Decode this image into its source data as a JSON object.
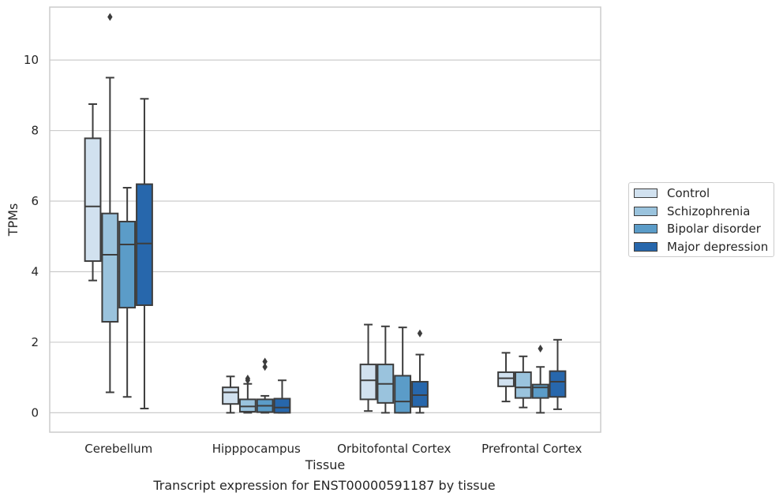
{
  "chart_data": {
    "type": "box",
    "xlabel": "Tissue",
    "ylabel": "TPMs",
    "caption": "Transcript expression for ENST00000591187 by tissue",
    "ylim": [
      -0.55,
      11.5
    ],
    "yticks": [
      0,
      2,
      4,
      6,
      8,
      10
    ],
    "grid": "horizontal",
    "legend_position": "right",
    "categories": [
      "Cerebellum",
      "Hipppocampus",
      "Orbitofontal Cortex",
      "Prefrontal Cortex"
    ],
    "series": [
      {
        "name": "Control",
        "color": "#d1e1ef",
        "boxes": [
          {
            "whislo": 3.75,
            "q1": 4.3,
            "med": 5.85,
            "q3": 7.78,
            "whishi": 8.75,
            "fliers": []
          },
          {
            "whislo": 0.0,
            "q1": 0.25,
            "med": 0.58,
            "q3": 0.72,
            "whishi": 1.03,
            "fliers": []
          },
          {
            "whislo": 0.05,
            "q1": 0.38,
            "med": 0.92,
            "q3": 1.37,
            "whishi": 2.5,
            "fliers": []
          },
          {
            "whislo": 0.32,
            "q1": 0.75,
            "med": 0.98,
            "q3": 1.15,
            "whishi": 1.7,
            "fliers": []
          }
        ]
      },
      {
        "name": "Schizophrenia",
        "color": "#9ac3dd",
        "boxes": [
          {
            "whislo": 0.58,
            "q1": 2.58,
            "med": 4.48,
            "q3": 5.65,
            "whishi": 9.5,
            "fliers": [
              11.22
            ]
          },
          {
            "whislo": 0.0,
            "q1": 0.03,
            "med": 0.18,
            "q3": 0.38,
            "whishi": 0.82,
            "fliers": [
              0.97,
              0.92
            ]
          },
          {
            "whislo": 0.0,
            "q1": 0.28,
            "med": 0.82,
            "q3": 1.37,
            "whishi": 2.45,
            "fliers": []
          },
          {
            "whislo": 0.15,
            "q1": 0.42,
            "med": 0.72,
            "q3": 1.15,
            "whishi": 1.6,
            "fliers": []
          }
        ]
      },
      {
        "name": "Bipolar disorder",
        "color": "#5b9cc8",
        "boxes": [
          {
            "whislo": 0.45,
            "q1": 2.98,
            "med": 4.77,
            "q3": 5.42,
            "whishi": 6.38,
            "fliers": []
          },
          {
            "whislo": 0.0,
            "q1": 0.02,
            "med": 0.2,
            "q3": 0.38,
            "whishi": 0.48,
            "fliers": [
              1.45,
              1.3
            ]
          },
          {
            "whislo": 0.0,
            "q1": 0.0,
            "med": 0.32,
            "q3": 1.05,
            "whishi": 2.42,
            "fliers": []
          },
          {
            "whislo": 0.0,
            "q1": 0.42,
            "med": 0.72,
            "q3": 0.8,
            "whishi": 1.3,
            "fliers": [
              1.82
            ]
          }
        ]
      },
      {
        "name": "Major depression",
        "color": "#2767ac",
        "boxes": [
          {
            "whislo": 0.12,
            "q1": 3.05,
            "med": 4.8,
            "q3": 6.48,
            "whishi": 8.9,
            "fliers": []
          },
          {
            "whislo": 0.0,
            "q1": 0.0,
            "med": 0.15,
            "q3": 0.4,
            "whishi": 0.92,
            "fliers": []
          },
          {
            "whislo": 0.0,
            "q1": 0.17,
            "med": 0.5,
            "q3": 0.88,
            "whishi": 1.65,
            "fliers": [
              2.25
            ]
          },
          {
            "whislo": 0.1,
            "q1": 0.45,
            "med": 0.88,
            "q3": 1.18,
            "whishi": 2.07,
            "fliers": []
          }
        ]
      }
    ]
  }
}
